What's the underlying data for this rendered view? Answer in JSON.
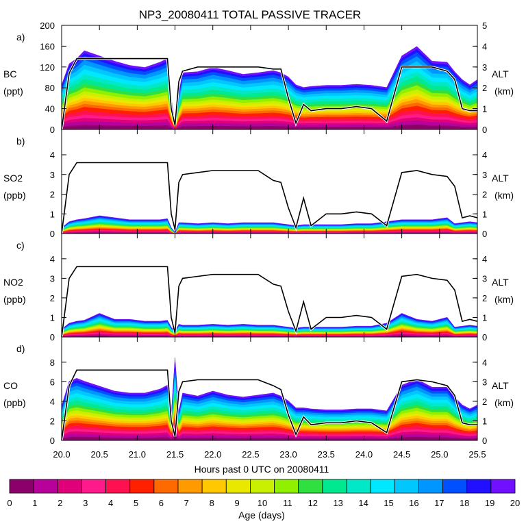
{
  "title": "NP3_20080411 TOTAL PASSIVE TRACER",
  "xlabel": "Hours past 0 UTC on 20080411",
  "x_ticks": [
    "20.0",
    "20.5",
    "21.0",
    "21.5",
    "22.0",
    "22.5",
    "23.0",
    "23.5",
    "24.0",
    "24.5",
    "25.0",
    "25.5"
  ],
  "colorbar": {
    "label": "Age (days)",
    "ticks": [
      "0",
      "1",
      "2",
      "3",
      "4",
      "5",
      "6",
      "7",
      "8",
      "9",
      "10",
      "11",
      "12",
      "13",
      "14",
      "15",
      "16",
      "17",
      "18",
      "19",
      "20"
    ],
    "colors": [
      "#8b006b",
      "#b8009a",
      "#e0007a",
      "#ff1a8c",
      "#ff1050",
      "#ff2000",
      "#ff6a00",
      "#ff9a00",
      "#ffc800",
      "#e8e800",
      "#c8f000",
      "#90f000",
      "#30e040",
      "#00e890",
      "#00e8c8",
      "#00e8ff",
      "#00c8ff",
      "#0096ff",
      "#0050ff",
      "#2010ff",
      "#7010ff"
    ]
  },
  "chart_data": [
    {
      "type": "area",
      "panel": "a)",
      "ylabel": [
        "BC",
        "(ppt)"
      ],
      "ylabel_right": [
        "ALT",
        "(km)"
      ],
      "y_ticks": [
        "0",
        "40",
        "80",
        "120",
        "160",
        "200"
      ],
      "y_ticks_right": [
        "0",
        "1",
        "2",
        "3",
        "4",
        "5"
      ],
      "ylim": [
        0,
        200
      ],
      "ylim_right": [
        0,
        5
      ],
      "x": [
        20.0,
        20.1,
        20.2,
        20.3,
        20.5,
        20.7,
        20.9,
        21.1,
        21.3,
        21.4,
        21.45,
        21.5,
        21.55,
        21.6,
        21.8,
        22.0,
        22.2,
        22.4,
        22.6,
        22.8,
        22.9,
        23.0,
        23.1,
        23.2,
        23.3,
        23.5,
        23.7,
        23.9,
        24.1,
        24.3,
        24.5,
        24.7,
        24.9,
        25.1,
        25.2,
        25.3,
        25.4,
        25.5
      ],
      "total": [
        85,
        125,
        135,
        150,
        140,
        130,
        122,
        118,
        128,
        135,
        60,
        10,
        70,
        108,
        110,
        118,
        112,
        105,
        108,
        112,
        108,
        100,
        85,
        80,
        82,
        84,
        84,
        86,
        84,
        80,
        140,
        158,
        130,
        128,
        110,
        95,
        85,
        95
      ],
      "altitude": [
        0,
        2.7,
        3.4,
        3.4,
        3.4,
        3.4,
        3.4,
        3.4,
        3.4,
        3.4,
        1.0,
        0.2,
        2.3,
        2.8,
        3.0,
        3.0,
        3.0,
        3.0,
        3.0,
        2.9,
        2.9,
        1.5,
        0.3,
        1.2,
        0.9,
        1.0,
        1.0,
        1.1,
        1.0,
        0.4,
        3.0,
        3.0,
        3.0,
        2.8,
        2.4,
        1.0,
        0.9,
        0.9
      ]
    },
    {
      "type": "area",
      "panel": "b)",
      "ylabel": [
        "SO2",
        "(ppb)"
      ],
      "ylabel_right": [
        "ALT",
        "(km)"
      ],
      "y_ticks": [
        "0",
        "1",
        "2",
        "3",
        "4"
      ],
      "y_ticks_right": [
        "0",
        "1",
        "2",
        "3",
        "4"
      ],
      "ylim": [
        0,
        4.8
      ],
      "ylim_right": [
        0,
        4.8
      ],
      "x": [
        20.0,
        20.1,
        20.2,
        20.3,
        20.5,
        20.7,
        20.9,
        21.1,
        21.3,
        21.4,
        21.45,
        21.5,
        21.55,
        21.6,
        21.8,
        22.0,
        22.2,
        22.4,
        22.6,
        22.8,
        22.9,
        23.0,
        23.1,
        23.2,
        23.3,
        23.5,
        23.7,
        23.9,
        24.1,
        24.3,
        24.5,
        24.7,
        24.9,
        25.1,
        25.2,
        25.3,
        25.4,
        25.5
      ],
      "total": [
        0.3,
        0.6,
        0.7,
        0.75,
        0.9,
        0.8,
        0.7,
        0.7,
        0.7,
        0.75,
        0.3,
        0.05,
        0.55,
        0.55,
        0.5,
        0.55,
        0.5,
        0.55,
        0.55,
        0.55,
        0.5,
        0.45,
        0.4,
        0.45,
        0.45,
        0.45,
        0.45,
        0.5,
        0.5,
        0.6,
        0.7,
        0.7,
        0.7,
        0.8,
        0.5,
        0.55,
        0.6,
        0.55
      ],
      "altitude": [
        0,
        3.0,
        3.6,
        3.6,
        3.6,
        3.6,
        3.6,
        3.6,
        3.6,
        3.6,
        1.0,
        0.2,
        2.6,
        3.0,
        3.1,
        3.2,
        3.2,
        3.2,
        3.2,
        2.7,
        2.6,
        1.3,
        0.3,
        1.8,
        0.4,
        1.0,
        1.0,
        1.1,
        1.0,
        0.4,
        3.1,
        3.2,
        3.0,
        2.9,
        2.4,
        0.8,
        0.9,
        0.8
      ]
    },
    {
      "type": "area",
      "panel": "c)",
      "ylabel": [
        "NO2",
        "(ppb)"
      ],
      "ylabel_right": [
        "ALT",
        "(km)"
      ],
      "y_ticks": [
        "0",
        "1",
        "2",
        "3",
        "4"
      ],
      "y_ticks_right": [
        "0",
        "1",
        "2",
        "3",
        "4"
      ],
      "ylim": [
        0,
        4.8
      ],
      "ylim_right": [
        0,
        4.8
      ],
      "x": [
        20.0,
        20.1,
        20.2,
        20.3,
        20.5,
        20.7,
        20.9,
        21.1,
        21.3,
        21.4,
        21.45,
        21.5,
        21.55,
        21.6,
        21.8,
        22.0,
        22.2,
        22.4,
        22.6,
        22.8,
        22.9,
        23.0,
        23.1,
        23.2,
        23.3,
        23.5,
        23.7,
        23.9,
        24.1,
        24.3,
        24.5,
        24.7,
        24.9,
        25.1,
        25.2,
        25.3,
        25.4,
        25.5
      ],
      "total": [
        0.4,
        0.7,
        0.8,
        0.85,
        1.2,
        0.9,
        0.9,
        0.8,
        0.8,
        0.85,
        0.5,
        0.3,
        0.65,
        0.6,
        0.6,
        0.65,
        0.6,
        0.65,
        0.6,
        0.6,
        0.55,
        0.5,
        0.45,
        0.5,
        0.5,
        0.5,
        0.5,
        0.55,
        0.55,
        0.7,
        1.2,
        0.9,
        0.8,
        1.0,
        0.5,
        0.55,
        0.6,
        0.55
      ],
      "altitude": [
        0,
        3.0,
        3.6,
        3.6,
        3.6,
        3.6,
        3.6,
        3.6,
        3.6,
        3.6,
        1.0,
        0.2,
        2.6,
        3.0,
        3.1,
        3.2,
        3.2,
        3.2,
        3.2,
        2.7,
        2.6,
        1.3,
        0.3,
        1.8,
        0.4,
        1.0,
        1.0,
        1.1,
        1.0,
        0.4,
        3.1,
        3.2,
        3.0,
        2.9,
        2.4,
        0.8,
        0.9,
        0.8
      ]
    },
    {
      "type": "area",
      "panel": "d)",
      "ylabel": [
        "CO",
        "(ppb)"
      ],
      "ylabel_right": [
        "ALT",
        "(km)"
      ],
      "y_ticks": [
        "0",
        "2",
        "4",
        "6",
        "8"
      ],
      "y_ticks_right": [
        "0",
        "1",
        "2",
        "3",
        "4"
      ],
      "ylim": [
        0,
        9.6
      ],
      "ylim_right": [
        0,
        4.8
      ],
      "x": [
        20.0,
        20.1,
        20.2,
        20.3,
        20.5,
        20.7,
        20.9,
        21.1,
        21.3,
        21.4,
        21.45,
        21.5,
        21.55,
        21.6,
        21.8,
        22.0,
        22.2,
        22.4,
        22.6,
        22.8,
        22.9,
        23.0,
        23.1,
        23.2,
        23.3,
        23.5,
        23.7,
        23.9,
        24.1,
        24.3,
        24.5,
        24.7,
        24.9,
        25.1,
        25.2,
        25.3,
        25.4,
        25.5
      ],
      "total": [
        3.5,
        6.0,
        6.3,
        6.0,
        5.5,
        5.0,
        4.8,
        4.8,
        5.2,
        5.6,
        2.5,
        8.4,
        3.0,
        4.8,
        4.5,
        5.0,
        4.6,
        4.4,
        4.6,
        4.8,
        4.5,
        4.0,
        3.3,
        3.3,
        3.2,
        3.1,
        3.1,
        3.2,
        3.2,
        3.0,
        5.6,
        6.2,
        5.4,
        5.4,
        4.4,
        3.6,
        3.2,
        3.6
      ],
      "altitude": [
        0,
        2.8,
        3.6,
        3.6,
        3.6,
        3.6,
        3.6,
        3.6,
        3.6,
        3.6,
        1.0,
        0.2,
        2.5,
        3.0,
        3.1,
        3.1,
        3.1,
        3.1,
        3.1,
        2.8,
        2.6,
        1.3,
        0.3,
        1.2,
        0.8,
        0.9,
        0.9,
        1.0,
        0.9,
        0.4,
        3.0,
        3.1,
        3.0,
        2.8,
        2.3,
        0.9,
        0.8,
        0.8
      ]
    }
  ]
}
